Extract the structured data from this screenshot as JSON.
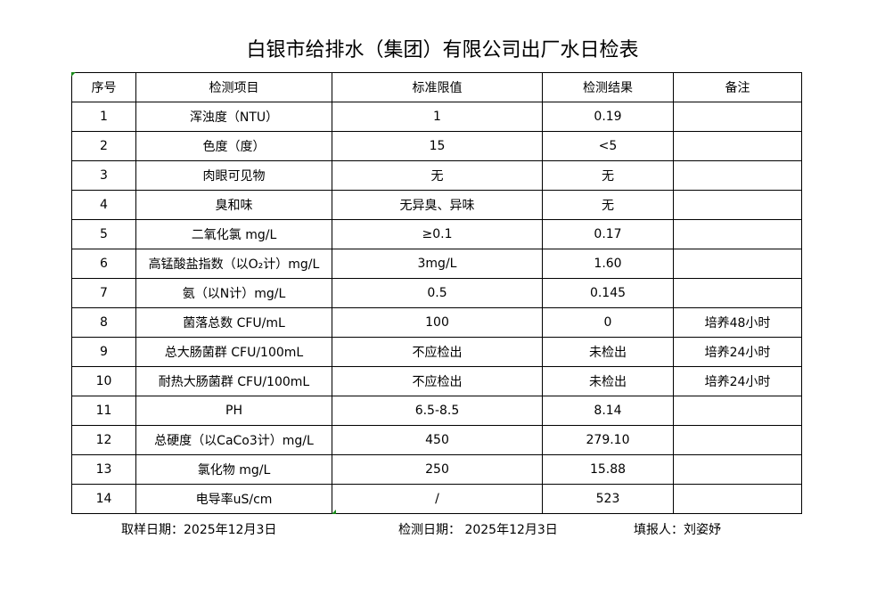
{
  "title": "白银市给排水（集团）有限公司出厂水日检表",
  "table": {
    "headers": [
      "序号",
      "检测项目",
      "标准限值",
      "检测结果",
      "备注"
    ],
    "rows": [
      [
        "1",
        "浑浊度（NTU）",
        "1",
        "0.19",
        ""
      ],
      [
        "2",
        "色度（度）",
        "15",
        "<5",
        ""
      ],
      [
        "3",
        "肉眼可见物",
        "无",
        "无",
        ""
      ],
      [
        "4",
        "臭和味",
        "无异臭、异味",
        "无",
        ""
      ],
      [
        "5",
        "二氧化氯 mg/L",
        "≥0.1",
        "0.17",
        ""
      ],
      [
        "6",
        "高锰酸盐指数（以O₂计）mg/L",
        "3mg/L",
        "1.60",
        ""
      ],
      [
        "7",
        "氨（以N计）mg/L",
        "0.5",
        "0.145",
        ""
      ],
      [
        "8",
        "菌落总数 CFU/mL",
        "100",
        "0",
        "培养48小时"
      ],
      [
        "9",
        "总大肠菌群 CFU/100mL",
        "不应检出",
        "未检出",
        "培养24小时"
      ],
      [
        "10",
        "耐热大肠菌群 CFU/100mL",
        "不应检出",
        "未检出",
        "培养24小时"
      ],
      [
        "11",
        "PH",
        "6.5-8.5",
        "8.14",
        ""
      ],
      [
        "12",
        "总硬度（以CaCo3计）mg/L",
        "450",
        "279.10",
        ""
      ],
      [
        "13",
        "氯化物 mg/L",
        "250",
        "15.88",
        ""
      ],
      [
        "14",
        "电导率uS/cm",
        "/",
        "523",
        ""
      ]
    ]
  },
  "footer": {
    "sampling_date": "取样日期：2025年12月3日",
    "test_date": "检测日期：  2025年12月3日",
    "reporter": "填报人：刘姿妤"
  },
  "colors": {
    "cell_marker": "#1a8a1a"
  }
}
